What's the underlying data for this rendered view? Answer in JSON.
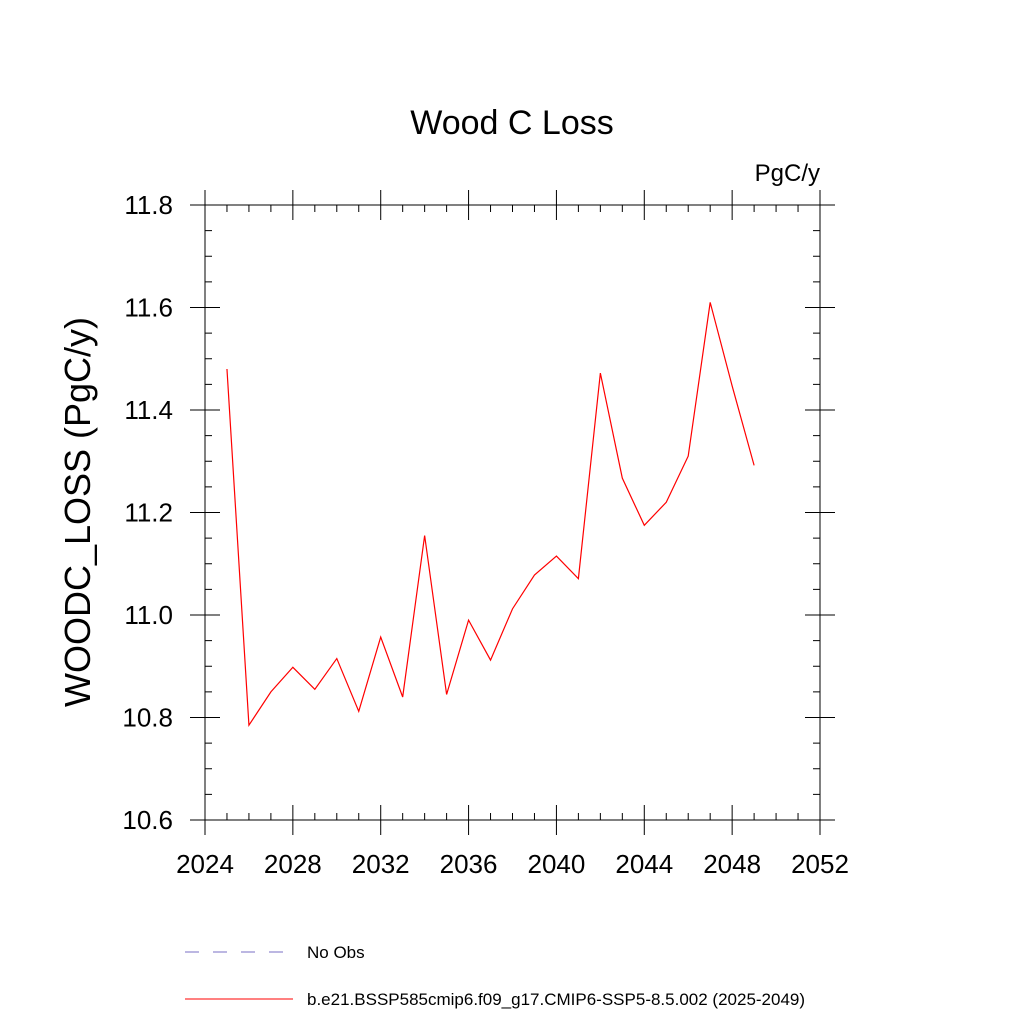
{
  "chart_data": {
    "type": "line",
    "title": "Wood C Loss",
    "units_label": "PgC/y",
    "ylabel": "WOODC_LOSS  (PgC/y)",
    "xlabel": "",
    "xlim": [
      2024,
      2052
    ],
    "ylim": [
      10.6,
      11.8
    ],
    "x_ticks": [
      2024,
      2028,
      2032,
      2036,
      2040,
      2044,
      2048,
      2052
    ],
    "y_ticks": [
      10.6,
      10.8,
      11.0,
      11.2,
      11.4,
      11.6,
      11.8
    ],
    "y_tick_labels": [
      "10.6",
      "10.8",
      "11.0",
      "11.2",
      "11.4",
      "11.6",
      "11.8"
    ],
    "grid": false,
    "legend_position": "bottom",
    "series": [
      {
        "name": "b.e21.BSSP585cmip6.f09_g17.CMIP6-SSP5-8.5.002 (2025-2049)",
        "color": "#ff0000",
        "style": "solid",
        "x": [
          2025,
          2026,
          2027,
          2028,
          2029,
          2030,
          2031,
          2032,
          2033,
          2034,
          2035,
          2036,
          2037,
          2038,
          2039,
          2040,
          2041,
          2042,
          2043,
          2044,
          2045,
          2046,
          2047,
          2048,
          2049
        ],
        "values": [
          11.48,
          10.785,
          10.85,
          10.898,
          10.855,
          10.915,
          10.812,
          10.957,
          10.84,
          11.155,
          10.845,
          10.99,
          10.912,
          11.012,
          11.078,
          11.115,
          11.071,
          11.472,
          11.267,
          11.175,
          11.22,
          11.31,
          11.61,
          11.447,
          11.292
        ]
      }
    ],
    "legend": [
      {
        "label": "No Obs",
        "color": "#7a6fc4",
        "style": "dashed"
      },
      {
        "label": "b.e21.BSSP585cmip6.f09_g17.CMIP6-SSP5-8.5.002 (2025-2049)",
        "color": "#ff0000",
        "style": "solid"
      }
    ]
  }
}
